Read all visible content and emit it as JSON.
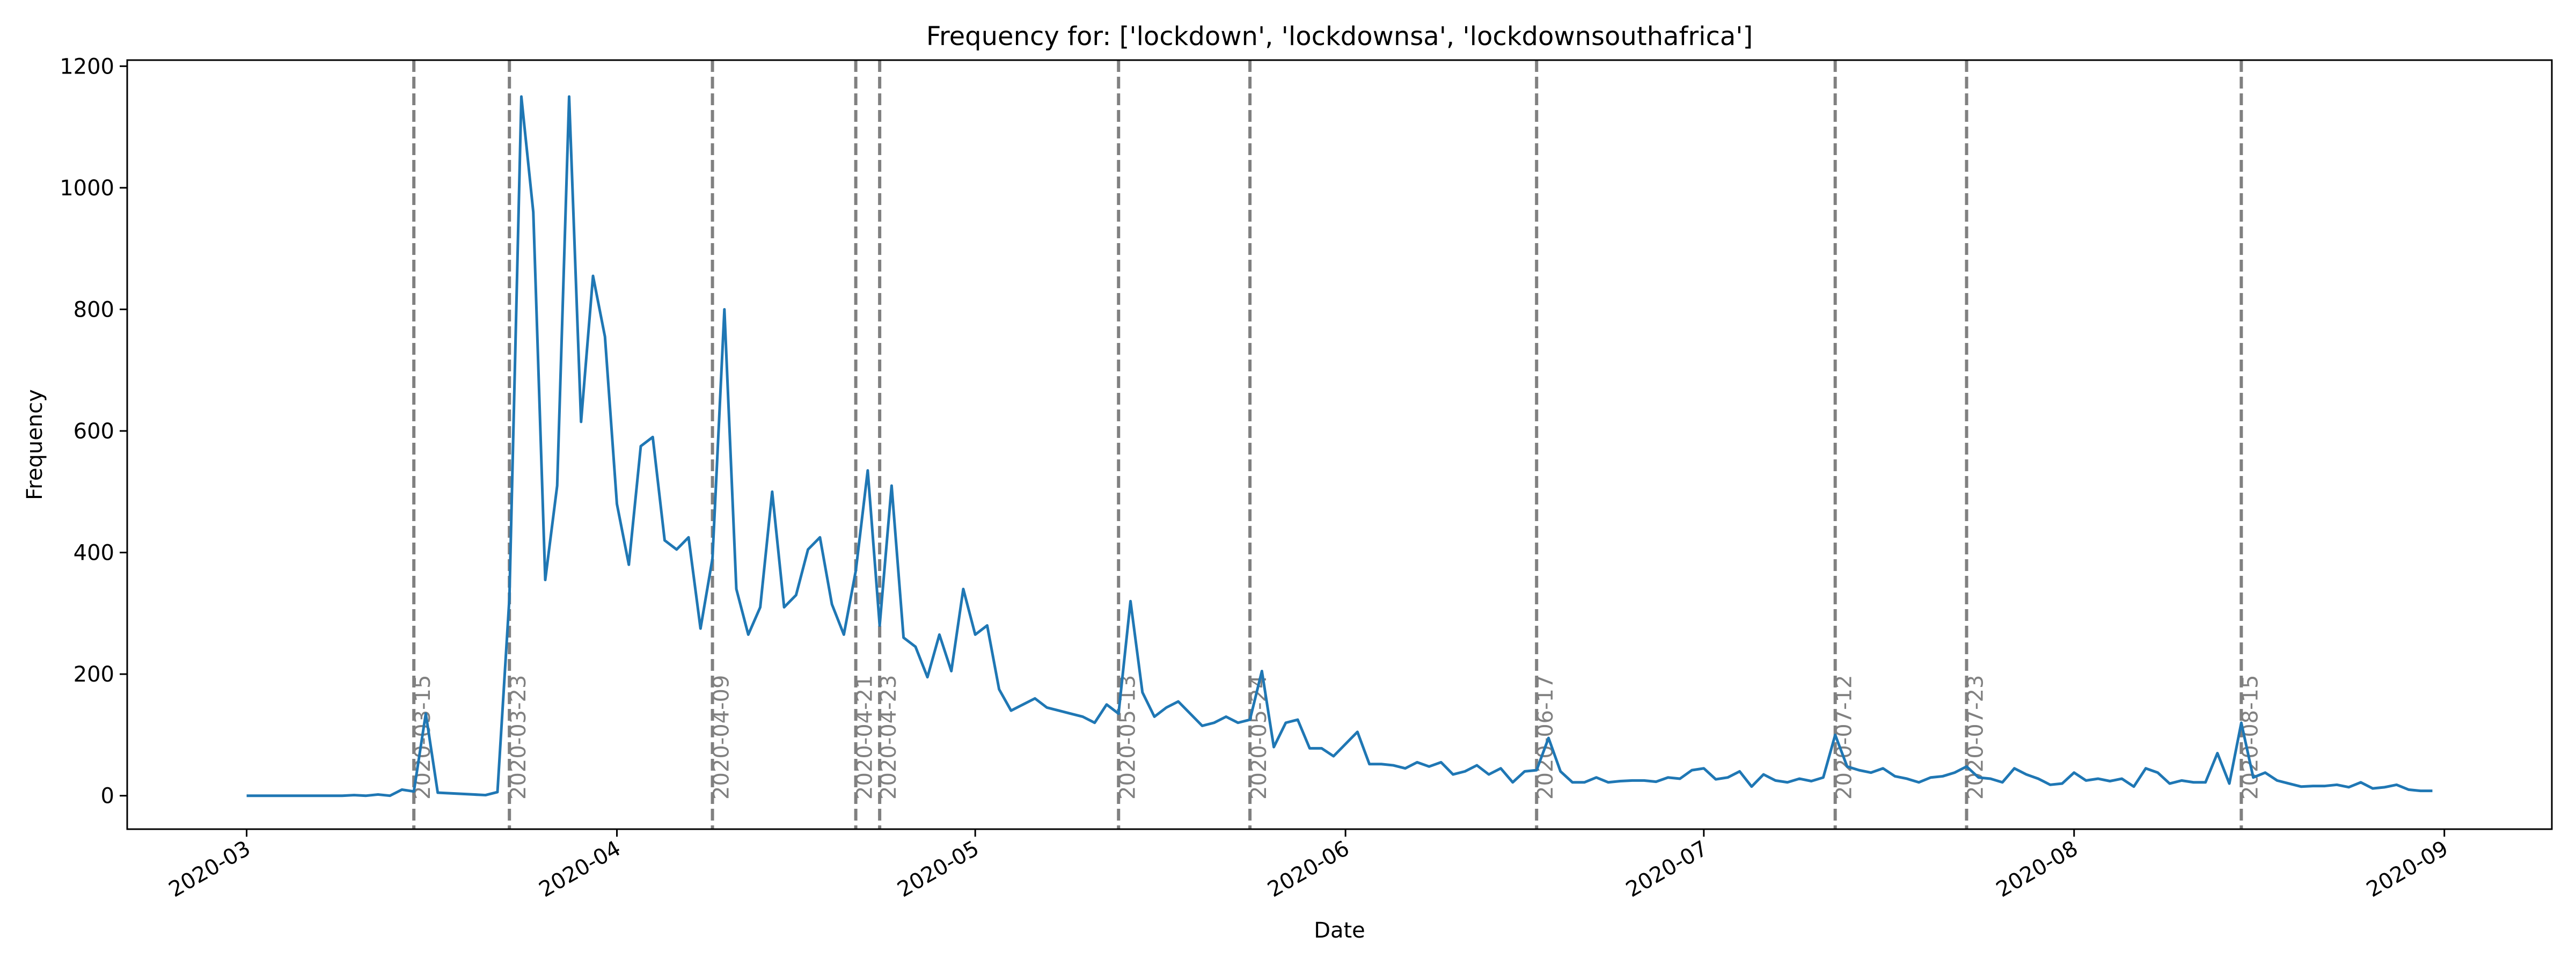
{
  "chart_data": {
    "type": "line",
    "title": "Frequency for: ['lockdown', 'lockdownsa', 'lockdownsouthafrica']",
    "xlabel": "Date",
    "ylabel": "Frequency",
    "xlim": [
      "2020-02-20",
      "2020-09-10"
    ],
    "ylim": [
      -55,
      1210
    ],
    "x_ticks": [
      "2020-03",
      "2020-04",
      "2020-05",
      "2020-06",
      "2020-07",
      "2020-08",
      "2020-09"
    ],
    "y_ticks": [
      0,
      200,
      400,
      600,
      800,
      1000,
      1200
    ],
    "grid": false,
    "line_color": "#1f77b4",
    "vline_color": "#808080",
    "vlines": [
      "2020-03-15",
      "2020-03-23",
      "2020-04-09",
      "2020-04-21",
      "2020-04-23",
      "2020-05-13",
      "2020-05-24",
      "2020-06-17",
      "2020-07-12",
      "2020-07-23",
      "2020-08-15"
    ],
    "start_date": "2020-03-01",
    "values": [
      0,
      0,
      0,
      0,
      0,
      0,
      0,
      0,
      0,
      1,
      0,
      2,
      0,
      10,
      7,
      135,
      5,
      4,
      3,
      2,
      1,
      6,
      325,
      1150,
      960,
      355,
      510,
      1150,
      615,
      855,
      755,
      480,
      380,
      575,
      590,
      420,
      405,
      425,
      275,
      390,
      800,
      340,
      265,
      310,
      500,
      310,
      330,
      405,
      425,
      315,
      265,
      370,
      535,
      280,
      510,
      260,
      245,
      195,
      265,
      205,
      340,
      265,
      280,
      175,
      140,
      150,
      160,
      145,
      140,
      135,
      130,
      120,
      150,
      135,
      320,
      170,
      130,
      145,
      155,
      135,
      115,
      120,
      130,
      120,
      125,
      205,
      80,
      120,
      125,
      78,
      78,
      65,
      85,
      105,
      52,
      52,
      50,
      45,
      55,
      48,
      55,
      35,
      40,
      50,
      35,
      45,
      22,
      40,
      42,
      95,
      40,
      22,
      22,
      30,
      22,
      24,
      25,
      25,
      23,
      30,
      28,
      42,
      45,
      27,
      30,
      40,
      15,
      35,
      25,
      22,
      28,
      24,
      30,
      100,
      48,
      42,
      38,
      45,
      32,
      28,
      22,
      30,
      32,
      38,
      48,
      30,
      28,
      22,
      45,
      35,
      28,
      18,
      20,
      38,
      25,
      28,
      24,
      28,
      15,
      45,
      38,
      20,
      25,
      22,
      22,
      70,
      20,
      120,
      30,
      38,
      25,
      20,
      15,
      16,
      16,
      18,
      14,
      22,
      12,
      14,
      18,
      10,
      8,
      8
    ]
  }
}
